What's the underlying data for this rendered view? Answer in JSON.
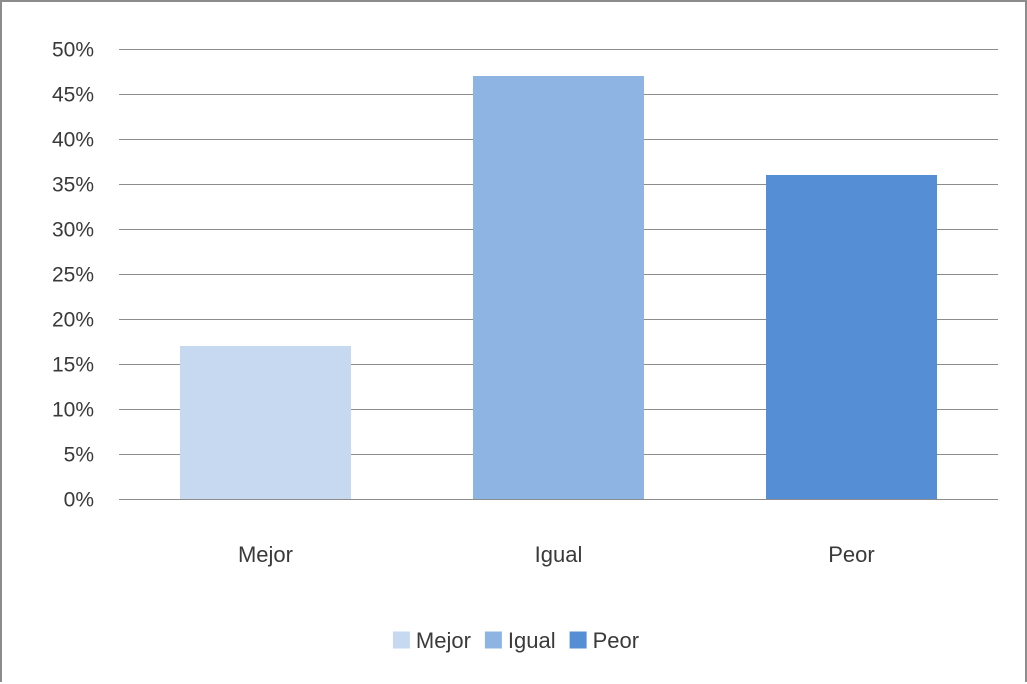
{
  "chart_data": {
    "type": "bar",
    "title": "",
    "xlabel": "",
    "ylabel": "",
    "categories": [
      "Mejor",
      "Igual",
      "Peor"
    ],
    "values": [
      17,
      47,
      36
    ],
    "value_format": "percent",
    "ylim": [
      0,
      50
    ],
    "yticks": [
      "0%",
      "5%",
      "10%",
      "15%",
      "20%",
      "25%",
      "30%",
      "35%",
      "40%",
      "45%",
      "50%"
    ],
    "colors": [
      "#c6d9f1",
      "#8eb4e3",
      "#558ed5"
    ],
    "gridlines": true,
    "legend": {
      "position": "bottom",
      "entries": [
        "Mejor",
        "Igual",
        "Peor"
      ]
    }
  }
}
